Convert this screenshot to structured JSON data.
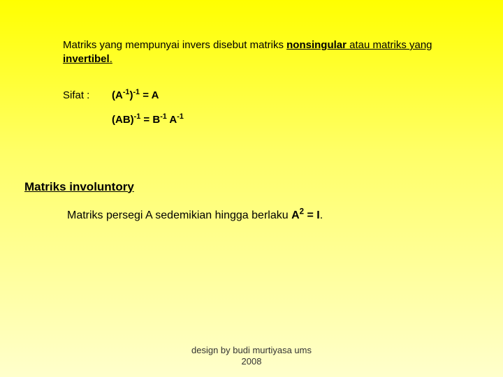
{
  "intro": {
    "part1": "Matriks yang mempunyai invers disebut matriks ",
    "bold1": "nonsingular",
    "part2": " atau matriks yang ",
    "bold2": "invertibel",
    "period": "."
  },
  "sifat": {
    "label": "Sifat :",
    "eq1_a": "(A",
    "eq1_sup1": "-1",
    "eq1_b": ")",
    "eq1_sup2": "-1",
    "eq1_c": " = A",
    "eq2_a": "(AB)",
    "eq2_sup1": "-1",
    "eq2_b": " = B",
    "eq2_sup2": "-1",
    "eq2_c": " A",
    "eq2_sup3": "-1"
  },
  "involuntory": {
    "heading": "Matriks involuntory",
    "text_a": "Matriks persegi A sedemikian hingga berlaku  ",
    "text_b": "A",
    "sup": "2",
    "text_c": " = I",
    "period": "."
  },
  "footer": {
    "line1": "design by budi murtiyasa ums",
    "line2": "2008"
  },
  "style": {
    "bg_gradient_top": "#ffff00",
    "bg_gradient_mid": "#ffff66",
    "bg_gradient_bot": "#ffffcc",
    "text_color": "#000000",
    "footer_color": "#333333",
    "base_fontsize_pt": 11,
    "heading_fontsize_pt": 13,
    "font_family": "Arial"
  }
}
